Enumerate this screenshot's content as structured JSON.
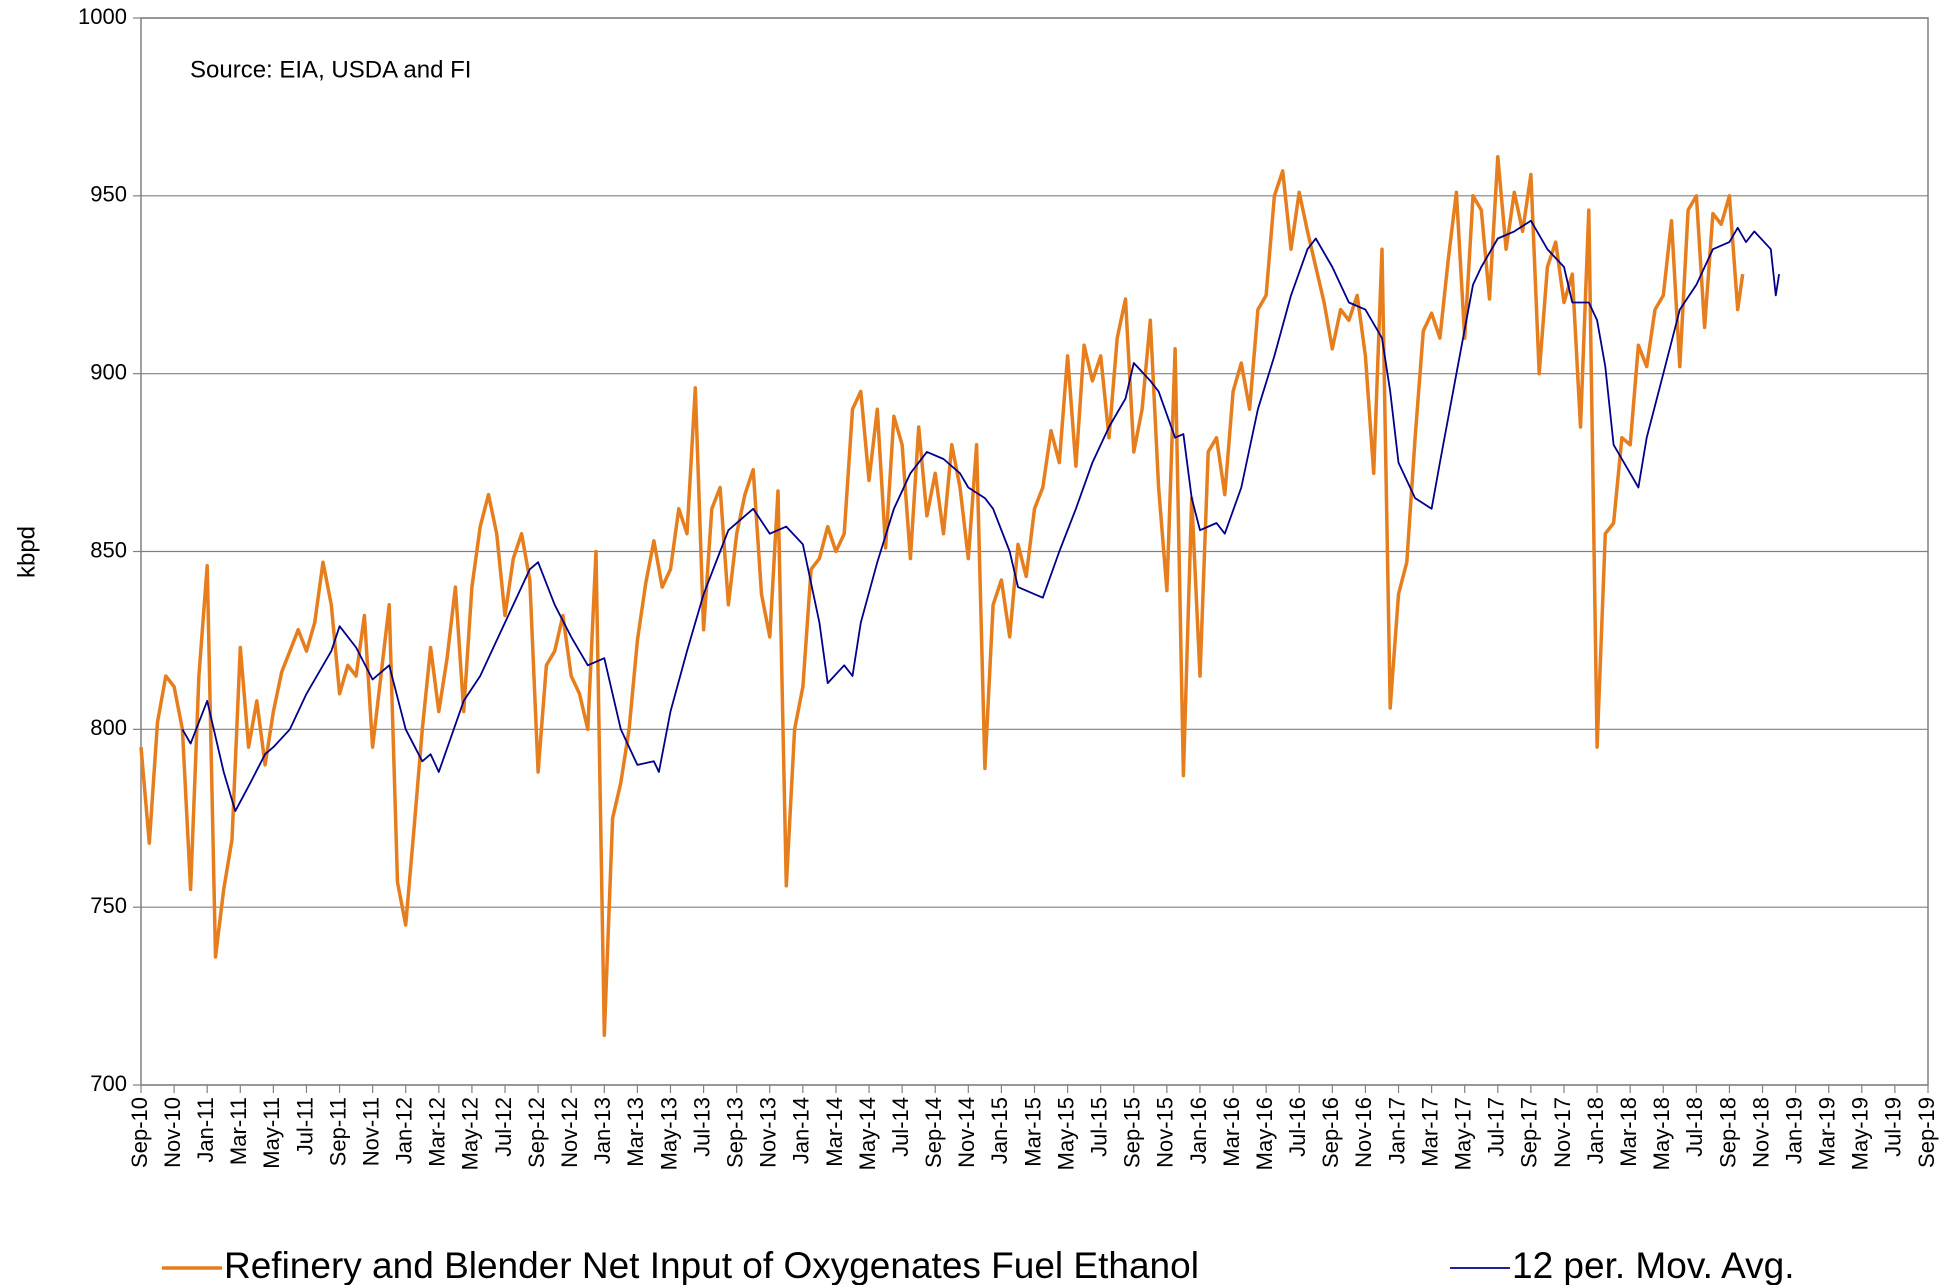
{
  "chart_data": {
    "type": "line",
    "annotation": "Source: EIA, USDA and FI",
    "y_label": "kbpd",
    "ylim": [
      700,
      1000
    ],
    "yticks": [
      700,
      750,
      800,
      850,
      900,
      950,
      1000
    ],
    "xlim": [
      0,
      108
    ],
    "xticks": [
      {
        "value": 0,
        "label": "Sep-10"
      },
      {
        "value": 2,
        "label": "Nov-10"
      },
      {
        "value": 4,
        "label": "Jan-11"
      },
      {
        "value": 6,
        "label": "Mar-11"
      },
      {
        "value": 8,
        "label": "May-11"
      },
      {
        "value": 10,
        "label": "Jul-11"
      },
      {
        "value": 12,
        "label": "Sep-11"
      },
      {
        "value": 14,
        "label": "Nov-11"
      },
      {
        "value": 16,
        "label": "Jan-12"
      },
      {
        "value": 18,
        "label": "Mar-12"
      },
      {
        "value": 20,
        "label": "May-12"
      },
      {
        "value": 22,
        "label": "Jul-12"
      },
      {
        "value": 24,
        "label": "Sep-12"
      },
      {
        "value": 26,
        "label": "Nov-12"
      },
      {
        "value": 28,
        "label": "Jan-13"
      },
      {
        "value": 30,
        "label": "Mar-13"
      },
      {
        "value": 32,
        "label": "May-13"
      },
      {
        "value": 34,
        "label": "Jul-13"
      },
      {
        "value": 36,
        "label": "Sep-13"
      },
      {
        "value": 38,
        "label": "Nov-13"
      },
      {
        "value": 40,
        "label": "Jan-14"
      },
      {
        "value": 42,
        "label": "Mar-14"
      },
      {
        "value": 44,
        "label": "May-14"
      },
      {
        "value": 46,
        "label": "Jul-14"
      },
      {
        "value": 48,
        "label": "Sep-14"
      },
      {
        "value": 50,
        "label": "Nov-14"
      },
      {
        "value": 52,
        "label": "Jan-15"
      },
      {
        "value": 54,
        "label": "Mar-15"
      },
      {
        "value": 56,
        "label": "May-15"
      },
      {
        "value": 58,
        "label": "Jul-15"
      },
      {
        "value": 60,
        "label": "Sep-15"
      },
      {
        "value": 62,
        "label": "Nov-15"
      },
      {
        "value": 64,
        "label": "Jan-16"
      },
      {
        "value": 66,
        "label": "Mar-16"
      },
      {
        "value": 68,
        "label": "May-16"
      },
      {
        "value": 70,
        "label": "Jul-16"
      },
      {
        "value": 72,
        "label": "Sep-16"
      },
      {
        "value": 74,
        "label": "Nov-16"
      },
      {
        "value": 76,
        "label": "Jan-17"
      },
      {
        "value": 78,
        "label": "Mar-17"
      },
      {
        "value": 80,
        "label": "May-17"
      },
      {
        "value": 82,
        "label": "Jul-17"
      },
      {
        "value": 84,
        "label": "Sep-17"
      },
      {
        "value": 86,
        "label": "Nov-17"
      },
      {
        "value": 88,
        "label": "Jan-18"
      },
      {
        "value": 90,
        "label": "Mar-18"
      },
      {
        "value": 92,
        "label": "May-18"
      },
      {
        "value": 94,
        "label": "Jul-18"
      },
      {
        "value": 96,
        "label": "Sep-18"
      },
      {
        "value": 98,
        "label": "Nov-18"
      },
      {
        "value": 100,
        "label": "Jan-19"
      },
      {
        "value": 102,
        "label": "Mar-19"
      },
      {
        "value": 104,
        "label": "May-19"
      },
      {
        "value": 106,
        "label": "Jul-19"
      },
      {
        "value": 108,
        "label": "Sep-19"
      }
    ],
    "grid": true,
    "series": [
      {
        "name": "Refinery and Blender Net Input of Oxygenates Fuel Ethanol",
        "color": "#e67e1e",
        "x": [
          0,
          0.5,
          1,
          1.5,
          2,
          2.5,
          3,
          3.5,
          4,
          4.5,
          5,
          5.5,
          6,
          6.5,
          7,
          7.5,
          8,
          8.5,
          9,
          9.5,
          10,
          10.5,
          11,
          11.5,
          12,
          12.5,
          13,
          13.5,
          14,
          14.5,
          15,
          15.5,
          16,
          16.5,
          17,
          17.5,
          18,
          18.5,
          19,
          19.5,
          20,
          20.5,
          21,
          21.5,
          22,
          22.5,
          23,
          23.5,
          24,
          24.5,
          25,
          25.5,
          26,
          26.5,
          27,
          27.5,
          28,
          28.5,
          29,
          29.5,
          30,
          30.5,
          31,
          31.5,
          32,
          32.5,
          33,
          33.5,
          34,
          34.5,
          35,
          35.5,
          36,
          36.5,
          37,
          37.5,
          38,
          38.5,
          39,
          39.5,
          40,
          40.5,
          41,
          41.5,
          42,
          42.5,
          43,
          43.5,
          44,
          44.5,
          45,
          45.5,
          46,
          46.5,
          47,
          47.5,
          48,
          48.5,
          49,
          49.5,
          50,
          50.5,
          51,
          51.5,
          52,
          52.5,
          53,
          53.5,
          54,
          54.5,
          55,
          55.5,
          56,
          56.5,
          57,
          57.5,
          58,
          58.5,
          59,
          59.5,
          60,
          60.5,
          61,
          61.5,
          62,
          62.5,
          63,
          63.5,
          64,
          64.5,
          65,
          65.5,
          66,
          66.5,
          67,
          67.5,
          68,
          68.5,
          69,
          69.5,
          70,
          70.5,
          71,
          71.5,
          72,
          72.5,
          73,
          73.5,
          74,
          74.5,
          75,
          75.5,
          76,
          76.5,
          77,
          77.5,
          78,
          78.5,
          79,
          79.5,
          80,
          80.5,
          81,
          81.5,
          82,
          82.5,
          83,
          83.5,
          84,
          84.5,
          85,
          85.5,
          86,
          86.5,
          87,
          87.5,
          88,
          88.5,
          89,
          89.5,
          90,
          90.5,
          91,
          91.5,
          92,
          92.5,
          93,
          93.5,
          94,
          94.5,
          95,
          95.5,
          96,
          96.5,
          96.8
        ],
        "values": [
          795,
          768,
          802,
          815,
          812,
          800,
          755,
          815,
          846,
          736,
          755,
          769,
          823,
          795,
          808,
          790,
          805,
          816,
          822,
          828,
          822,
          830,
          847,
          835,
          810,
          818,
          815,
          832,
          795,
          815,
          835,
          757,
          745,
          772,
          800,
          823,
          805,
          820,
          840,
          805,
          840,
          857,
          866,
          855,
          832,
          848,
          855,
          842,
          788,
          818,
          822,
          832,
          815,
          810,
          800,
          850,
          714,
          775,
          785,
          800,
          825,
          841,
          853,
          840,
          845,
          862,
          855,
          896,
          828,
          862,
          868,
          835,
          855,
          866,
          873,
          838,
          826,
          867,
          756,
          800,
          812,
          845,
          848,
          857,
          850,
          855,
          890,
          895,
          870,
          890,
          851,
          888,
          880,
          848,
          885,
          860,
          872,
          855,
          880,
          868,
          848,
          880,
          789,
          835,
          842,
          826,
          852,
          843,
          862,
          868,
          884,
          875,
          905,
          874,
          908,
          898,
          905,
          882,
          910,
          921,
          878,
          890,
          915,
          868,
          839,
          907,
          787,
          865,
          815,
          878,
          882,
          866,
          895,
          903,
          890,
          918,
          922,
          950,
          957,
          935,
          951,
          940,
          930,
          920,
          907,
          918,
          915,
          922,
          905,
          872,
          935,
          806,
          838,
          847,
          882,
          912,
          917,
          910,
          932,
          951,
          910,
          950,
          946,
          921,
          961,
          935,
          951,
          940,
          956,
          900,
          930,
          937,
          920,
          928,
          885,
          946,
          795,
          855,
          858,
          882,
          880,
          908,
          902,
          918,
          922,
          943,
          902,
          946,
          950,
          913,
          945,
          942,
          950,
          918,
          928
        ]
      },
      {
        "name": "12 per. Mov. Avg.",
        "color": "#00008b",
        "x": [
          2.5,
          3,
          4,
          5,
          5.7,
          6.5,
          7.5,
          8,
          9,
          10,
          11.5,
          12,
          13,
          14,
          15,
          16,
          17,
          17.5,
          18,
          19.5,
          20.5,
          21.5,
          22.5,
          23.5,
          24,
          25,
          26,
          27,
          28,
          29,
          30,
          31,
          31.3,
          32,
          33,
          34,
          35,
          35.5,
          36.5,
          37,
          38,
          39,
          40,
          41,
          41.5,
          42.5,
          43,
          43.5,
          44.5,
          45.5,
          46.5,
          47.5,
          48.5,
          49.5,
          50,
          51,
          51.5,
          52.5,
          53,
          54,
          54.5,
          55.5,
          56.5,
          57.5,
          58.5,
          59.5,
          60,
          61,
          61.5,
          62.5,
          63,
          63.5,
          64,
          65,
          65.5,
          66.5,
          67.5,
          68.5,
          69.5,
          70.5,
          71,
          72,
          73,
          74,
          75,
          75.5,
          76,
          77,
          78,
          78.5,
          79.5,
          80.5,
          81,
          82,
          83,
          84,
          85,
          86,
          86.5,
          87.5,
          88,
          88.5,
          89,
          90,
          90.5,
          91,
          92,
          93,
          94,
          95,
          96,
          96.5,
          97,
          97.5,
          98.5,
          98.8,
          99
        ],
        "values": [
          800,
          796,
          808,
          788,
          777,
          784,
          793,
          795,
          800,
          810,
          822,
          829,
          823,
          814,
          818,
          800,
          791,
          793,
          788,
          808,
          815,
          825,
          835,
          845,
          847,
          835,
          826,
          818,
          820,
          800,
          790,
          791,
          788,
          805,
          822,
          838,
          850,
          856,
          860,
          862,
          855,
          857,
          852,
          830,
          813,
          818,
          815,
          830,
          847,
          862,
          872,
          878,
          876,
          872,
          868,
          865,
          862,
          850,
          840,
          838,
          837,
          850,
          862,
          875,
          885,
          893,
          903,
          898,
          895,
          882,
          883,
          865,
          856,
          858,
          855,
          868,
          890,
          905,
          922,
          935,
          938,
          930,
          920,
          918,
          910,
          895,
          875,
          865,
          862,
          875,
          900,
          925,
          930,
          938,
          940,
          943,
          935,
          930,
          920,
          920,
          915,
          902,
          880,
          872,
          868,
          882,
          900,
          918,
          925,
          935,
          937,
          941,
          937,
          940,
          935,
          922,
          928
        ]
      }
    ]
  }
}
